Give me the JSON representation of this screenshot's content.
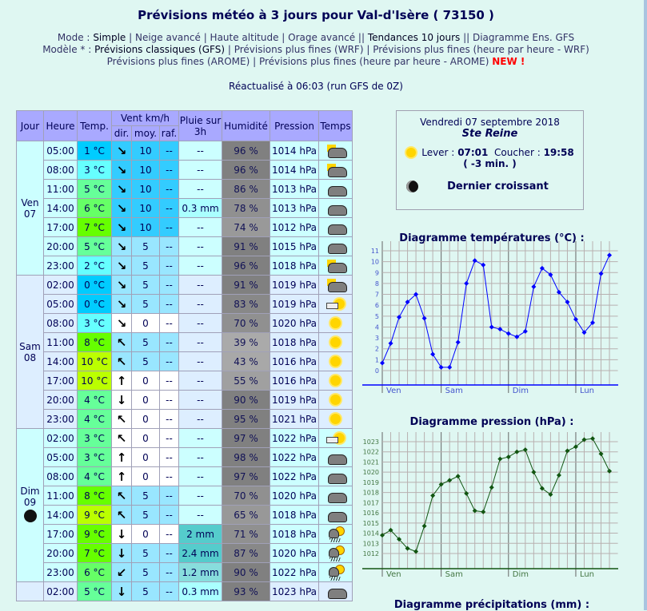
{
  "title": "Prévisions météo à 3 jours pour Val-d'Isère ( 73150 )",
  "mode": {
    "label": "Mode :",
    "items": [
      "Simple",
      "Neige avancé",
      "Haute altitude",
      "Orage avancé",
      "Tendances 10 jours",
      "Diagramme Ens. GFS"
    ]
  },
  "model": {
    "label": "Modèle * :",
    "items": [
      "Prévisions classiques (GFS)",
      "Prévisions plus fines (WRF)",
      "Prévisions plus fines (heure par heure - WRF)",
      "Prévisions plus fines (AROME)",
      "Prévisions plus fines (heure par heure - AROME)"
    ],
    "new": "NEW !"
  },
  "updated": "Réactualisé à 06:03 (run GFS de 0Z)",
  "table": {
    "headers": {
      "day": "Jour",
      "hour": "Heure",
      "temp": "Temp.",
      "wind": "Vent km/h",
      "dir": "dir.",
      "avg": "moy.",
      "gust": "raf.",
      "rain": "Pluie sur 3h",
      "hum": "Humidité",
      "press": "Pression",
      "weather": "Temps"
    },
    "days": [
      {
        "label": "Ven",
        "num": "07",
        "moon": false,
        "rows": [
          [
            "05:00",
            "1 °C",
            "#00ccff",
            "↘",
            "10",
            "#33ccff",
            "--",
            "--",
            "",
            "96 %",
            "#808080",
            "1014 hPa",
            "sun-cloud"
          ],
          [
            "08:00",
            "3 °C",
            "#66ffff",
            "↘",
            "10",
            "#33ccff",
            "--",
            "--",
            "",
            "96 %",
            "#808080",
            "1014 hPa",
            "sun-cloud"
          ],
          [
            "11:00",
            "5 °C",
            "#66ff99",
            "↘",
            "10",
            "#33ccff",
            "--",
            "--",
            "",
            "86 %",
            "#888888",
            "1013 hPa",
            "cloud"
          ],
          [
            "14:00",
            "6 °C",
            "#66ff66",
            "↘",
            "10",
            "#33ccff",
            "--",
            "0.3 mm",
            "#aaffff",
            "78 %",
            "#909090",
            "1013 hPa",
            "cloud"
          ],
          [
            "17:00",
            "7 °C",
            "#66ff00",
            "↘",
            "10",
            "#33ccff",
            "--",
            "--",
            "",
            "74 %",
            "#999999",
            "1012 hPa",
            "cloud"
          ],
          [
            "20:00",
            "5 °C",
            "#66ff99",
            "↘",
            "5",
            "#99e6ff",
            "--",
            "--",
            "",
            "91 %",
            "#808080",
            "1015 hPa",
            "cloud"
          ],
          [
            "23:00",
            "2 °C",
            "#66ffff",
            "↘",
            "5",
            "#99e6ff",
            "--",
            "--",
            "",
            "96 %",
            "#808080",
            "1018 hPa",
            "sun-cloud"
          ]
        ]
      },
      {
        "label": "Sam",
        "num": "08",
        "moon": false,
        "rows": [
          [
            "02:00",
            "0 °C",
            "#00ccff",
            "↘",
            "5",
            "#99e6ff",
            "--",
            "--",
            "",
            "91 %",
            "#808080",
            "1019 hPa",
            "sun-cloud"
          ],
          [
            "05:00",
            "0 °C",
            "#00ccff",
            "↘",
            "5",
            "#99e6ff",
            "--",
            "--",
            "",
            "83 %",
            "#888888",
            "1019 hPa",
            "fog-sun"
          ],
          [
            "08:00",
            "3 °C",
            "#66ffff",
            "↘",
            "0",
            "#ffffff",
            "--",
            "--",
            "",
            "70 %",
            "#909090",
            "1020 hPa",
            "sun"
          ],
          [
            "11:00",
            "8 °C",
            "#66ff00",
            "↖",
            "5",
            "#99e6ff",
            "--",
            "--",
            "",
            "39 %",
            "#aaaaaa",
            "1018 hPa",
            "sun"
          ],
          [
            "14:00",
            "10 °C",
            "#bbff00",
            "↖",
            "5",
            "#99e6ff",
            "--",
            "--",
            "",
            "43 %",
            "#a8a8a8",
            "1016 hPa",
            "sun"
          ],
          [
            "17:00",
            "10 °C",
            "#bbff00",
            "↑",
            "0",
            "#ffffff",
            "--",
            "--",
            "",
            "55 %",
            "#a0a0a0",
            "1016 hPa",
            "sun"
          ],
          [
            "20:00",
            "4 °C",
            "#66ff99",
            "↓",
            "0",
            "#ffffff",
            "--",
            "--",
            "",
            "90 %",
            "#808080",
            "1019 hPa",
            "sun"
          ],
          [
            "23:00",
            "4 °C",
            "#66ff99",
            "↖",
            "0",
            "#ffffff",
            "--",
            "--",
            "",
            "95 %",
            "#808080",
            "1021 hPa",
            "sun"
          ]
        ]
      },
      {
        "label": "Dim",
        "num": "09",
        "moon": true,
        "rows": [
          [
            "02:00",
            "3 °C",
            "#66ff99",
            "↖",
            "0",
            "#ffffff",
            "--",
            "--",
            "",
            "97 %",
            "#808080",
            "1022 hPa",
            "fog-sun"
          ],
          [
            "05:00",
            "3 °C",
            "#66ff99",
            "↑",
            "0",
            "#ffffff",
            "--",
            "--",
            "",
            "98 %",
            "#808080",
            "1022 hPa",
            "cloud"
          ],
          [
            "08:00",
            "4 °C",
            "#66ff99",
            "↑",
            "0",
            "#ffffff",
            "--",
            "--",
            "",
            "97 %",
            "#808080",
            "1022 hPa",
            "cloud"
          ],
          [
            "11:00",
            "8 °C",
            "#66ff00",
            "↖",
            "5",
            "#99e6ff",
            "--",
            "--",
            "",
            "70 %",
            "#909090",
            "1020 hPa",
            "cloud"
          ],
          [
            "14:00",
            "9 °C",
            "#bbff00",
            "↖",
            "5",
            "#99e6ff",
            "--",
            "--",
            "",
            "65 %",
            "#989898",
            "1018 hPa",
            "cloud"
          ],
          [
            "17:00",
            "9 °C",
            "#66ff00",
            "↓",
            "0",
            "#ffffff",
            "--",
            "2 mm",
            "#55cccc",
            "71 %",
            "#909090",
            "1018 hPa",
            "storm-sun"
          ],
          [
            "20:00",
            "7 °C",
            "#66ff00",
            "↓",
            "5",
            "#99e6ff",
            "--",
            "2.4 mm",
            "#55cccc",
            "87 %",
            "#888888",
            "1020 hPa",
            "storm-sun"
          ],
          [
            "23:00",
            "6 °C",
            "#66ff66",
            "↙",
            "5",
            "#99e6ff",
            "--",
            "1.2 mm",
            "#88dddd",
            "90 %",
            "#808080",
            "1022 hPa",
            "storm-sun"
          ]
        ]
      },
      {
        "label": "",
        "num": "",
        "moon": false,
        "rows": [
          [
            "02:00",
            "5 °C",
            "#66ff99",
            "↓",
            "5",
            "#99e6ff",
            "--",
            "0.3 mm",
            "#aaffff",
            "93 %",
            "#808080",
            "1023 hPa",
            "cloud"
          ]
        ]
      }
    ]
  },
  "ephemeris": {
    "date": "Vendredi 07 septembre 2018",
    "saint": "Ste Reine",
    "rise_label": "Lever :",
    "rise": "07:01",
    "set_label": "Coucher :",
    "set": "19:58",
    "delta": "( -3 min. )",
    "moon_phase": "Dernier croissant"
  },
  "chart_data": [
    {
      "type": "line",
      "title": "Diagramme températures (°C) :",
      "color": "#0000ff",
      "ylim": [
        0,
        11
      ],
      "yticks": [
        0,
        1,
        2,
        3,
        4,
        5,
        6,
        7,
        8,
        9,
        10,
        11
      ],
      "day_labels": [
        "Ven",
        "Sam",
        "Dim",
        "Lun"
      ],
      "grid": true,
      "values": [
        0.7,
        2.5,
        4.9,
        6.3,
        7.0,
        4.8,
        1.5,
        0.3,
        0.3,
        2.6,
        8.0,
        10.1,
        9.7,
        4.0,
        3.8,
        3.4,
        3.1,
        3.6,
        7.7,
        9.4,
        8.8,
        7.2,
        6.3,
        4.7,
        3.5,
        4.4,
        8.9,
        10.6
      ]
    },
    {
      "type": "line",
      "title": "Diagramme pression (hPa) :",
      "color": "#115511",
      "ylim": [
        1012,
        1023
      ],
      "yticks": [
        1012,
        1013,
        1014,
        1015,
        1016,
        1017,
        1018,
        1019,
        1020,
        1021,
        1022,
        1023
      ],
      "day_labels": [
        "Ven",
        "Sam",
        "Dim",
        "Lun"
      ],
      "grid": true,
      "values": [
        1013.8,
        1014.3,
        1013.4,
        1012.5,
        1012.2,
        1014.7,
        1017.7,
        1018.8,
        1019.2,
        1019.6,
        1017.9,
        1016.2,
        1016.1,
        1018.5,
        1021.3,
        1021.5,
        1022.0,
        1022.2,
        1020.0,
        1018.4,
        1017.8,
        1019.7,
        1022.1,
        1022.5,
        1023.2,
        1023.3,
        1021.8,
        1020.1
      ]
    },
    {
      "type": "bar",
      "title": "Diagramme précipitations (mm) :"
    }
  ]
}
